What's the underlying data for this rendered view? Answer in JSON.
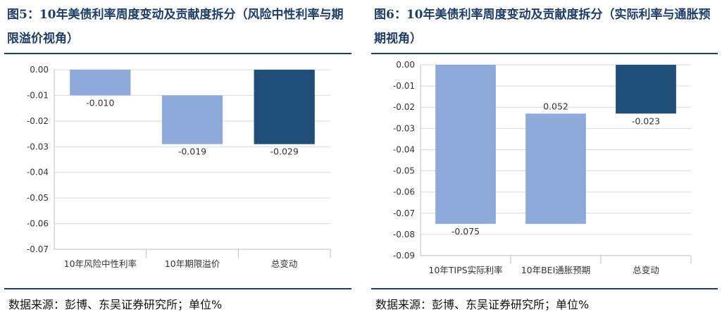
{
  "chart_data": [
    {
      "type": "bar",
      "subtype": "waterfall",
      "title": "图5：10年美债利率周度变动及贡献度拆分（风险中性利率与期限溢价视角）",
      "categories": [
        "10年风险中性利率",
        "10年期限溢价",
        "总变动"
      ],
      "values": [
        -0.01,
        -0.019,
        -0.029
      ],
      "data_labels": [
        "-0.010",
        "-0.019",
        "-0.029"
      ],
      "bar_colors": [
        "#8eaadb",
        "#8eaadb",
        "#1f4e79"
      ],
      "ylim": [
        -0.07,
        0.0
      ],
      "ytick_step": 0.01,
      "yticks": [
        "0.00",
        "-0.01",
        "-0.02",
        "-0.03",
        "-0.04",
        "-0.05",
        "-0.06",
        "-0.07"
      ],
      "xlabel": "",
      "ylabel": "",
      "grid": true,
      "source": "数据来源：彭博、东吴证券研究所；单位%"
    },
    {
      "type": "bar",
      "subtype": "waterfall",
      "title": "图6：10年美债利率周度变动及贡献度拆分（实际利率与通胀预期视角）",
      "categories": [
        "10年TIPS实际利率",
        "10年BEI通胀预期",
        "总变动"
      ],
      "values": [
        -0.075,
        0.052,
        -0.023
      ],
      "data_labels": [
        "-0.075",
        "0.052",
        "-0.023"
      ],
      "bar_colors": [
        "#8eaadb",
        "#8eaadb",
        "#1f4e79"
      ],
      "ylim": [
        -0.09,
        0.0
      ],
      "ytick_step": 0.01,
      "yticks": [
        "0.00",
        "-0.01",
        "-0.02",
        "-0.03",
        "-0.04",
        "-0.05",
        "-0.06",
        "-0.07",
        "-0.08",
        "-0.09"
      ],
      "xlabel": "",
      "ylabel": "",
      "grid": true,
      "source": "数据来源：彭博、东吴证券研究所；单位%"
    }
  ],
  "colors": {
    "title": "#1f3e67",
    "rule": "#1f3e67",
    "grid": "#d9d9d9",
    "axis": "#bfbfbf"
  }
}
